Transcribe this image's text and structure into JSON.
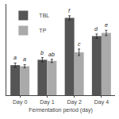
{
  "chart_data": {
    "type": "bar",
    "x_label": "Fermentation period (day)",
    "categories": [
      "Day 0",
      "Day 1",
      "Day 2",
      "Day 4"
    ],
    "series": [
      {
        "name": "TBL",
        "color": "#555555",
        "values": [
          0.28,
          0.33,
          0.72,
          0.55
        ],
        "errors": [
          0.02,
          0.02,
          0.02,
          0.02
        ],
        "annotations": [
          "a",
          "b",
          "f",
          "d"
        ]
      },
      {
        "name": "TP",
        "color": "#aaaaaa",
        "values": [
          0.27,
          0.32,
          0.4,
          0.58
        ],
        "errors": [
          0.015,
          0.015,
          0.03,
          0.025
        ],
        "annotations": [
          "a",
          "ab",
          "c",
          "e"
        ]
      }
    ],
    "ylim": [
      0,
      0.85
    ],
    "tick_labels": "x",
    "grid": false,
    "legend": "upper left"
  }
}
